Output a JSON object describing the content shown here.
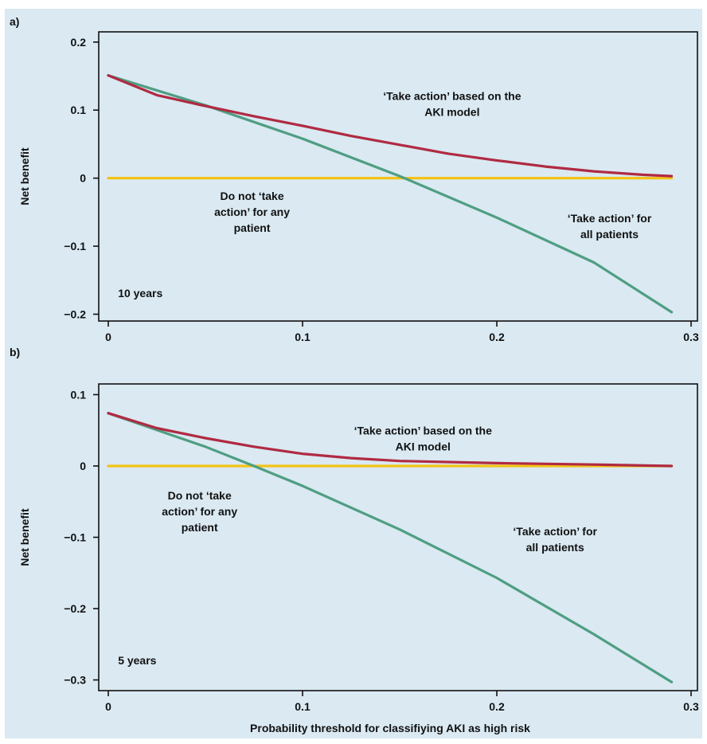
{
  "chart_data": [
    {
      "type": "line",
      "panel_label": "a)",
      "xlabel": "",
      "ylabel": "Net benefit",
      "xlim": [
        0,
        0.3
      ],
      "ylim": [
        -0.21,
        0.215
      ],
      "xticks": [
        "0",
        "0.1",
        "0.2",
        "0.3"
      ],
      "xtick_values": [
        0,
        0.1,
        0.2,
        0.3
      ],
      "yticks": [
        "−0.2",
        "−0.1",
        "0",
        "0.1",
        "0.2"
      ],
      "ytick_values": [
        -0.2,
        -0.1,
        0,
        0.1,
        0.2
      ],
      "grid": false,
      "series": [
        {
          "key": "all",
          "color": "#4f9e82",
          "x": [
            0,
            0.05,
            0.1,
            0.15,
            0.2,
            0.25,
            0.29
          ],
          "y": [
            0.151,
            0.107,
            0.058,
            0.003,
            -0.058,
            -0.124,
            -0.197
          ]
        },
        {
          "key": "model",
          "color": "#b02a42",
          "x": [
            0,
            0.025,
            0.05,
            0.075,
            0.1,
            0.125,
            0.15,
            0.175,
            0.2,
            0.225,
            0.25,
            0.275,
            0.29
          ],
          "y": [
            0.151,
            0.122,
            0.106,
            0.091,
            0.077,
            0.062,
            0.049,
            0.036,
            0.026,
            0.017,
            0.01,
            0.005,
            0.003
          ]
        },
        {
          "key": "none",
          "color": "#f2c318",
          "x": [
            0,
            0.29
          ],
          "y": [
            0,
            0
          ]
        }
      ],
      "annotations": [
        {
          "key": "model",
          "lines": [
            "‘Take action’ based on the",
            "AKI model"
          ],
          "x": 0.177,
          "y": 0.115,
          "anchor": "middle"
        },
        {
          "key": "none",
          "lines": [
            "Do not ‘take",
            "action’ for any",
            "patient"
          ],
          "x": 0.074,
          "y": -0.032,
          "anchor": "middle"
        },
        {
          "key": "all",
          "lines": [
            "‘Take action’ for",
            "all patients"
          ],
          "x": 0.258,
          "y": -0.065,
          "anchor": "middle"
        },
        {
          "key": "years",
          "lines": [
            "10 years"
          ],
          "x": 0.005,
          "y": -0.175,
          "anchor": "start"
        }
      ]
    },
    {
      "type": "line",
      "panel_label": "b)",
      "xlabel": "Probability threshold for classifiying AKI as high risk",
      "ylabel": "Net benefit",
      "xlim": [
        0,
        0.3
      ],
      "ylim": [
        -0.315,
        0.115
      ],
      "xticks": [
        "0",
        "0.1",
        "0.2",
        "0.3"
      ],
      "xtick_values": [
        0,
        0.1,
        0.2,
        0.3
      ],
      "yticks": [
        "−0.3",
        "−0.2",
        "−0.1",
        "0",
        "0.1"
      ],
      "ytick_values": [
        -0.3,
        -0.2,
        -0.1,
        0,
        0.1
      ],
      "grid": false,
      "series": [
        {
          "key": "all",
          "color": "#4f9e82",
          "x": [
            0,
            0.05,
            0.075,
            0.1,
            0.15,
            0.2,
            0.25,
            0.29
          ],
          "y": [
            0.074,
            0.027,
            0.0,
            -0.028,
            -0.089,
            -0.157,
            -0.236,
            -0.303
          ]
        },
        {
          "key": "model",
          "color": "#b02a42",
          "x": [
            0,
            0.025,
            0.05,
            0.075,
            0.1,
            0.125,
            0.15,
            0.2,
            0.25,
            0.29
          ],
          "y": [
            0.074,
            0.053,
            0.039,
            0.027,
            0.017,
            0.011,
            0.007,
            0.004,
            0.002,
            0.0
          ]
        },
        {
          "key": "none",
          "color": "#f2c318",
          "x": [
            0,
            0.29
          ],
          "y": [
            0,
            0
          ]
        }
      ],
      "annotations": [
        {
          "key": "model",
          "lines": [
            "‘Take action’ based on the",
            "AKI model"
          ],
          "x": 0.162,
          "y": 0.044,
          "anchor": "middle"
        },
        {
          "key": "none",
          "lines": [
            "Do not ‘take",
            "action’ for any",
            "patient"
          ],
          "x": 0.047,
          "y": -0.047,
          "anchor": "middle"
        },
        {
          "key": "all",
          "lines": [
            "‘Take action’ for",
            "all patients"
          ],
          "x": 0.23,
          "y": -0.097,
          "anchor": "middle"
        },
        {
          "key": "years",
          "lines": [
            "5 years"
          ],
          "x": 0.005,
          "y": -0.278,
          "anchor": "start"
        }
      ]
    }
  ]
}
